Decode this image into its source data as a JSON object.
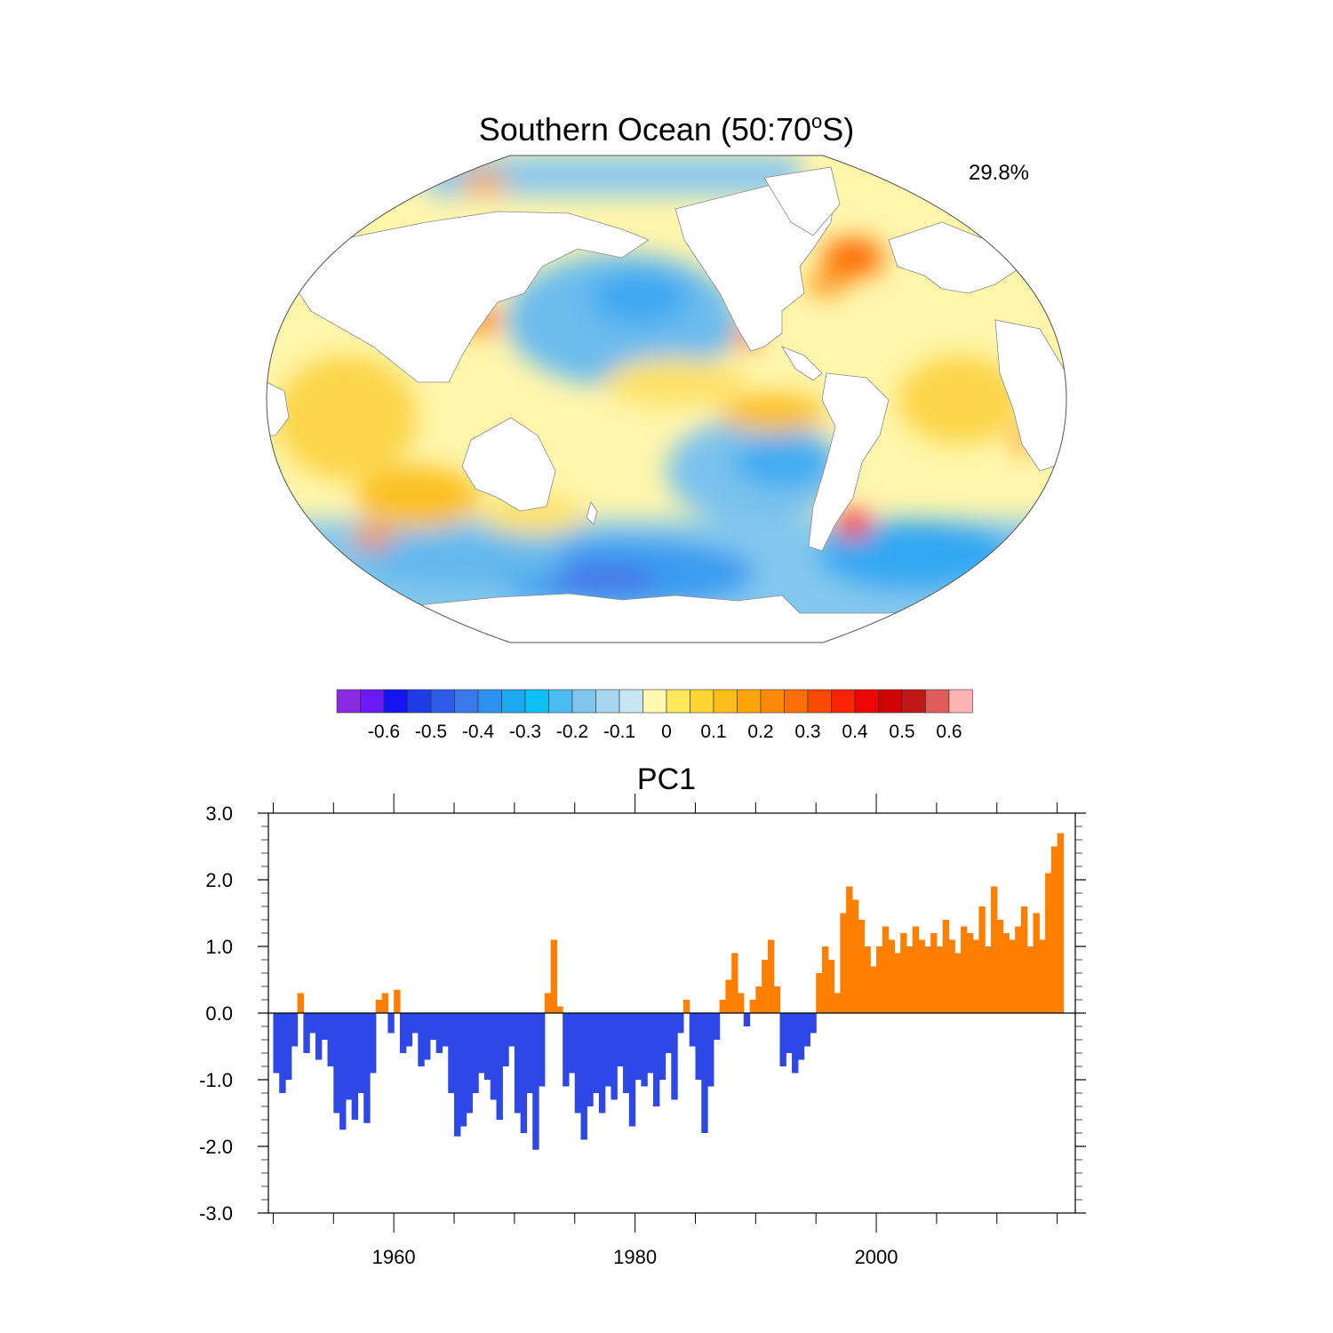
{
  "map_panel": {
    "title_main": "Southern Ocean (50:70",
    "title_sup": "o",
    "title_end": "S)",
    "variance_label": "29.8%"
  },
  "colorbar": {
    "colors": [
      "#8a2be2",
      "#6a1af5",
      "#1414f0",
      "#1e3ce6",
      "#2d5ce6",
      "#3a78e8",
      "#2e90f0",
      "#1ea8f0",
      "#0ac0f5",
      "#4cbcf0",
      "#80c6ec",
      "#a6d6f0",
      "#c6e6f4",
      "#fff8b0",
      "#fde85c",
      "#fcd535",
      "#fcbc1a",
      "#fca40a",
      "#fc8a08",
      "#fc6e06",
      "#fc4a04",
      "#f82404",
      "#ec0606",
      "#d00404",
      "#c01818",
      "#e05c5c",
      "#ffb4b4"
    ],
    "tick_labels": [
      "-0.6",
      "-0.5",
      "-0.4",
      "-0.3",
      "-0.2",
      "-0.1",
      "0",
      "0.1",
      "0.2",
      "0.3",
      "0.4",
      "0.5",
      "0.6"
    ]
  },
  "map_features": {
    "positive_color": "#fcbc1a",
    "negative_color": "#4cbcf0",
    "land_color": "#ffffff",
    "note": ""
  },
  "chart_data": {
    "type": "bar",
    "title": "PC1",
    "xlabel": "",
    "ylabel": "",
    "xlim": [
      1949.6,
      2016.5
    ],
    "ylim": [
      -3.0,
      3.0
    ],
    "x_ticks": [
      1960,
      1980,
      2000
    ],
    "x_tick_labels": [
      "1960",
      "1980",
      "2000"
    ],
    "y_ticks": [
      -3,
      -2,
      -1,
      0,
      1,
      2,
      3
    ],
    "y_tick_labels": [
      "-3.0",
      "-2.0",
      "-1.0",
      "0.0",
      "1.0",
      "2.0",
      "3.0"
    ],
    "positive_color": "#ff8000",
    "negative_color": "#2e48e8",
    "series": [
      {
        "x": [
          1950.0,
          1950.5,
          1951.0,
          1951.5,
          1952.0,
          1952.5,
          1953.0,
          1953.5,
          1954.0,
          1954.5,
          1955.0,
          1955.5,
          1956.0,
          1956.5,
          1957.0,
          1957.5,
          1958.0,
          1958.5,
          1959.0,
          1959.5,
          1960.0,
          1960.5,
          1961.0,
          1961.5,
          1962.0,
          1962.5,
          1963.0,
          1963.5,
          1964.0,
          1964.5,
          1965.0,
          1965.5,
          1966.0,
          1966.5,
          1967.0,
          1967.5,
          1968.0,
          1968.5,
          1969.0,
          1969.5,
          1970.0,
          1970.5,
          1971.0,
          1971.5,
          1972.0,
          1972.5,
          1973.0,
          1973.5,
          1974.0,
          1974.5,
          1975.0,
          1975.5,
          1976.0,
          1976.5,
          1977.0,
          1977.5,
          1978.0,
          1978.5,
          1979.0,
          1979.5,
          1980.0,
          1980.5,
          1981.0,
          1981.5,
          1982.0,
          1982.5,
          1983.0,
          1983.5,
          1984.0,
          1984.5,
          1985.0,
          1985.5,
          1986.0,
          1986.5,
          1987.0,
          1987.5,
          1988.0,
          1988.5,
          1989.0,
          1989.5,
          1990.0,
          1990.5,
          1991.0,
          1991.5,
          1992.0,
          1992.5,
          1993.0,
          1993.5,
          1994.0,
          1994.5,
          1995.0,
          1995.5,
          1996.0,
          1996.5,
          1997.0,
          1997.5,
          1998.0,
          1998.5,
          1999.0,
          1999.5,
          2000.0,
          2000.5,
          2001.0,
          2001.5,
          2002.0,
          2002.5,
          2003.0,
          2003.5,
          2004.0,
          2004.5,
          2005.0,
          2005.5,
          2006.0,
          2006.5,
          2007.0,
          2007.5,
          2008.0,
          2008.5,
          2009.0,
          2009.5,
          2010.0,
          2010.5,
          2011.0,
          2011.5,
          2012.0,
          2012.5,
          2013.0,
          2013.5,
          2014.0,
          2014.5,
          2015.0
        ],
        "values": [
          -0.9,
          -1.2,
          -1.0,
          -0.5,
          0.3,
          -0.6,
          -0.3,
          -0.7,
          -0.4,
          -0.8,
          -1.5,
          -1.75,
          -1.3,
          -1.6,
          -1.2,
          -1.65,
          -0.9,
          0.2,
          0.3,
          -0.3,
          0.35,
          -0.6,
          -0.5,
          -0.3,
          -0.8,
          -0.7,
          -0.4,
          -0.6,
          -0.5,
          -1.2,
          -1.85,
          -1.7,
          -1.5,
          -1.2,
          -0.9,
          -1.0,
          -1.3,
          -1.6,
          -0.8,
          -0.5,
          -1.5,
          -1.8,
          -1.2,
          -2.05,
          -1.1,
          0.3,
          1.1,
          0.1,
          -1.1,
          -0.9,
          -1.5,
          -1.9,
          -1.4,
          -1.2,
          -1.5,
          -1.1,
          -1.3,
          -0.8,
          -1.2,
          -1.7,
          -1.0,
          -1.1,
          -0.9,
          -1.4,
          -1.0,
          -0.6,
          -1.3,
          -0.3,
          0.2,
          -0.5,
          -1.0,
          -1.8,
          -1.1,
          -0.4,
          0.2,
          0.5,
          0.9,
          0.3,
          -0.2,
          0.2,
          0.4,
          0.8,
          1.1,
          0.4,
          -0.8,
          -0.6,
          -0.9,
          -0.7,
          -0.5,
          -0.3,
          0.6,
          1.0,
          0.8,
          0.3,
          1.5,
          1.9,
          1.7,
          1.4,
          1.0,
          0.7,
          1.0,
          1.3,
          1.1,
          0.9,
          1.2,
          1.0,
          1.3,
          1.1,
          1.0,
          1.2,
          1.0,
          1.4,
          1.1,
          0.9,
          1.3,
          1.2,
          1.1,
          1.6,
          1.0,
          1.9,
          1.4,
          1.2,
          1.1,
          1.3,
          1.6,
          1.0,
          1.5,
          1.1,
          2.1,
          2.5,
          2.7
        ]
      }
    ]
  }
}
